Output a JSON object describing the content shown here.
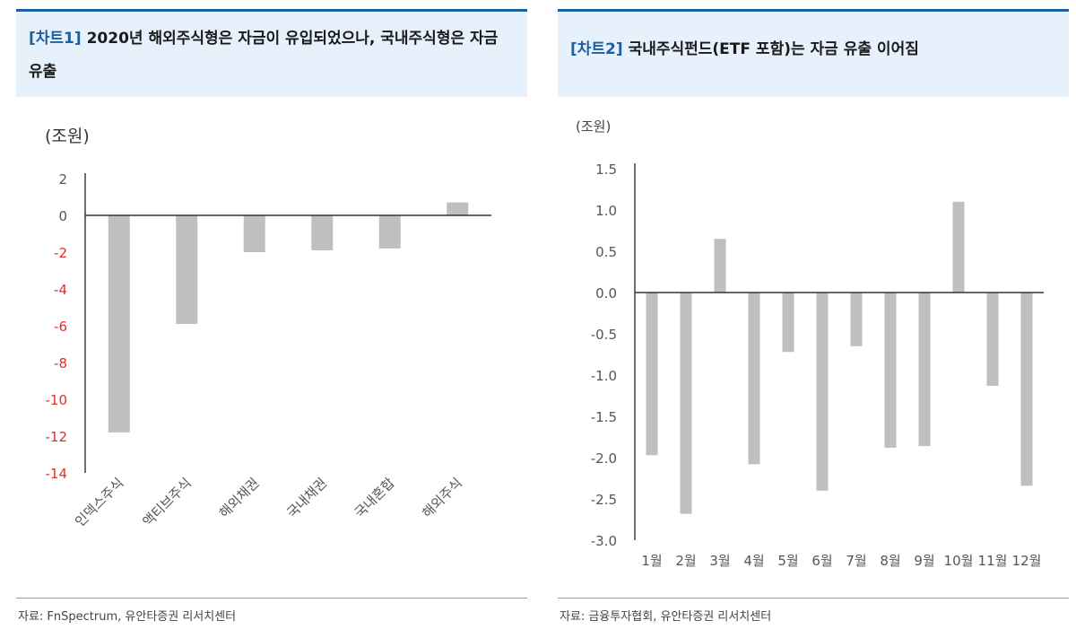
{
  "panels": [
    {
      "tag": "[차트1]",
      "title": "2020년 해외주식형은 자금이 유입되었으나, 국내주식형은 자금 유출",
      "source": "자료: FnSpectrum, 유안타증권 리서치센터"
    },
    {
      "tag": "[차트2]",
      "title": "국내주식펀드(ETF 포함)는 자금 유출 이어짐",
      "source": "자료: 금융투자협회, 유안타증권 리서치센터"
    }
  ],
  "chart_data": [
    {
      "type": "bar",
      "unit_label": "(조원)",
      "categories": [
        "인덱스주식",
        "액티브주식",
        "해외채권",
        "국내채권",
        "국내혼합",
        "해외주식"
      ],
      "values": [
        -11.8,
        -5.9,
        -2.0,
        -1.9,
        -1.8,
        0.7
      ],
      "ylim": [
        -14,
        2
      ],
      "yticks": [
        "2",
        "0",
        "-2",
        "-4",
        "-6",
        "-8",
        "-10",
        "-12",
        "-14"
      ],
      "bar_color": "#bfbfbf",
      "negative_tick_color": "#e03030",
      "grid": false
    },
    {
      "type": "bar",
      "unit_label": "(조원)",
      "categories": [
        "1월",
        "2월",
        "3월",
        "4월",
        "5월",
        "6월",
        "7월",
        "8월",
        "9월",
        "10월",
        "11월",
        "12월"
      ],
      "values": [
        -1.97,
        -2.68,
        0.65,
        -2.08,
        -0.72,
        -2.4,
        -0.65,
        -1.88,
        -1.86,
        1.1,
        -1.13,
        -2.34
      ],
      "ylim": [
        -3.0,
        1.5
      ],
      "yticks": [
        "1.5",
        "1.0",
        "0.5",
        "0.0",
        "-0.5",
        "-1.0",
        "-1.5",
        "-2.0",
        "-2.5",
        "-3.0"
      ],
      "bar_color": "#bfbfbf",
      "grid": false
    }
  ]
}
